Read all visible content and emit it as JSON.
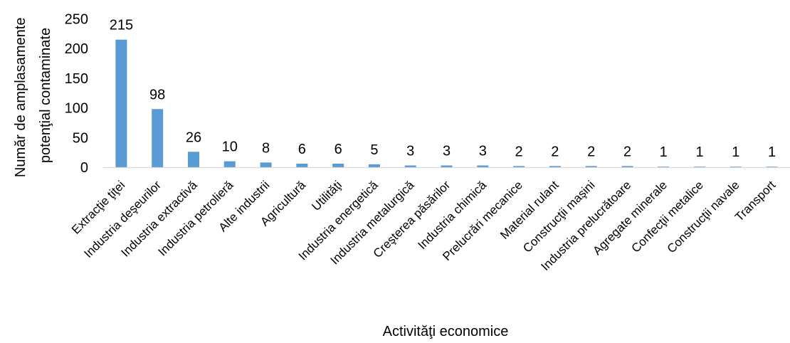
{
  "chart_data": {
    "type": "bar",
    "categories": [
      "Extracţie ţiţei",
      "Industria deşeurilor",
      "Industria extractivă",
      "Industria petrolieră",
      "Alte industrii",
      "Agricultură",
      "Utilităţi",
      "Industria energetică",
      "Industria metalurgică",
      "Creşterea păsărilor",
      "Industria chimică",
      "Prelucrări mecanice",
      "Material rulant",
      "Construcţii maşini",
      "Industria prelucrătoare",
      "Agregate minerale",
      "Confecţii metalice",
      "Construcţii navale",
      "Transport"
    ],
    "values": [
      215,
      98,
      26,
      10,
      8,
      6,
      6,
      5,
      3,
      3,
      3,
      2,
      2,
      2,
      2,
      1,
      1,
      1,
      1
    ],
    "xlabel": "Activităţi economice",
    "ylabel_lines": [
      "Număr de amplasamente",
      "potenţial contaminate"
    ],
    "ylim": [
      0,
      250
    ],
    "yticks": [
      0,
      50,
      100,
      150,
      200,
      250
    ],
    "grid": false,
    "legend": "none",
    "bar_color": "#5b9bd5",
    "axis_color": "#d9d9d9"
  }
}
